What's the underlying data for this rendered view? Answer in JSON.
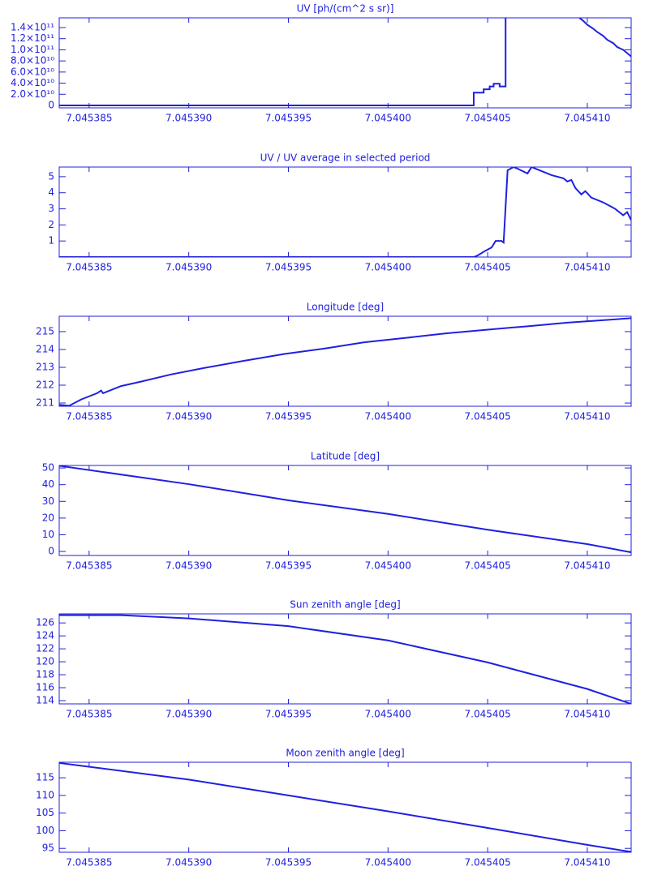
{
  "chart_data": [
    {
      "type": "line",
      "title": "UV [ph/(cm^2 s sr)]",
      "color": "#2020e0",
      "x": [
        7.0453835,
        7.0454043,
        7.0454043,
        7.0454048,
        7.0454048,
        7.0454051,
        7.0454051,
        7.0454053,
        7.0454053,
        7.0454056,
        7.0454056,
        7.0454059,
        7.0454059,
        7.0454077,
        7.0454096,
        7.0454098,
        7.04541,
        7.0454103,
        7.0454105,
        7.0454108,
        7.045411,
        7.0454113,
        7.0454115,
        7.0454118,
        7.045412,
        7.0454122
      ],
      "values": [
        0,
        0,
        23000000000,
        23000000000,
        29000000000,
        29000000000,
        34000000000,
        34000000000,
        39000000000,
        39000000000,
        34000000000,
        34000000000,
        157500000000,
        null,
        157500000000,
        152000000000,
        145000000000,
        138000000000,
        132000000000,
        125000000000,
        118000000000,
        112000000000,
        105000000000,
        100000000000,
        94000000000,
        88000000000
      ],
      "xlim": [
        7.0453835,
        7.0454122
      ],
      "ylim": [
        -4400000000,
        157500000000
      ],
      "xticks": [
        7.045385,
        {
          "value": 7.04539,
          "label": "7.045390"
        },
        7.045395,
        {
          "value": 7.0454,
          "label": "7.045400"
        },
        7.045405,
        {
          "value": 7.04541,
          "label": "7.045410"
        }
      ],
      "yticks": [
        0,
        {
          "value": 20000000000,
          "label": "2.0×10¹⁰"
        },
        {
          "value": 40000000000,
          "label": "4.0×10¹⁰"
        },
        {
          "value": 60000000000,
          "label": "6.0×10¹⁰"
        },
        {
          "value": 80000000000,
          "label": "8.0×10¹⁰"
        },
        {
          "value": 100000000000,
          "label": "1.0×10¹¹"
        },
        {
          "value": 120000000000,
          "label": "1.2×10¹¹"
        },
        {
          "value": 140000000000,
          "label": "1.4×10¹¹"
        }
      ]
    },
    {
      "type": "line",
      "title": "UV / UV average in selected period",
      "color": "#2020e0",
      "x": [
        7.0453835,
        7.0454043,
        7.0454045,
        7.0454049,
        7.0454052,
        7.0454054,
        7.0454057,
        7.0454058,
        7.045406,
        7.0454063,
        7.0454065,
        7.045407,
        7.0454072,
        7.0454076,
        7.0454082,
        7.0454088,
        7.045409,
        7.0454092,
        7.0454094,
        7.0454097,
        7.0454099,
        7.0454102,
        7.0454108,
        7.0454114,
        7.0454118,
        7.045412,
        7.0454122
      ],
      "values": [
        0,
        0,
        0.1,
        0.4,
        0.6,
        1.0,
        1.0,
        0.9,
        5.4,
        5.6,
        5.5,
        5.2,
        5.6,
        5.4,
        5.1,
        4.9,
        4.7,
        4.8,
        4.3,
        3.9,
        4.1,
        3.7,
        3.4,
        3.0,
        2.6,
        2.8,
        2.3
      ],
      "xlim": [
        7.0453835,
        7.0454122
      ],
      "ylim": [
        0,
        5.6
      ],
      "xticks": [
        7.045385,
        {
          "value": 7.04539,
          "label": "7.045390"
        },
        7.045395,
        {
          "value": 7.0454,
          "label": "7.045400"
        },
        7.045405,
        {
          "value": 7.04541,
          "label": "7.045410"
        }
      ],
      "yticks": [
        1,
        2,
        3,
        4,
        5
      ]
    },
    {
      "type": "line",
      "title": "Longitude [deg]",
      "color": "#2020e0",
      "x": [
        7.0453835,
        7.045384,
        7.0453846,
        7.0453854,
        7.0453856,
        7.0453857,
        7.0453866,
        7.0453876,
        7.0453891,
        7.0453907,
        7.0453927,
        7.0453948,
        7.0453968,
        7.0453988,
        7.0454009,
        7.0454029,
        7.0454049,
        7.045407,
        7.045409,
        7.0454122
      ],
      "values": [
        210.9,
        210.85,
        211.2,
        211.55,
        211.7,
        211.55,
        211.95,
        212.2,
        212.6,
        212.95,
        213.35,
        213.75,
        214.05,
        214.4,
        214.65,
        214.9,
        215.1,
        215.3,
        215.5,
        215.75
      ],
      "xlim": [
        7.0453835,
        7.0454122
      ],
      "ylim": [
        210.82,
        215.86
      ],
      "xticks": [
        7.045385,
        {
          "value": 7.04539,
          "label": "7.045390"
        },
        7.045395,
        {
          "value": 7.0454,
          "label": "7.045400"
        },
        7.045405,
        {
          "value": 7.04541,
          "label": "7.045410"
        }
      ],
      "yticks": [
        211,
        212,
        213,
        214,
        215
      ]
    },
    {
      "type": "line",
      "title": "Latitude [deg]",
      "color": "#2020e0",
      "x": [
        7.0453835,
        7.04539,
        7.045395,
        7.0454,
        7.045405,
        7.04541,
        7.0454122
      ],
      "values": [
        51.3,
        40.3,
        30.6,
        22.5,
        13,
        4.4,
        -0.5
      ],
      "xlim": [
        7.0453835,
        7.0454122
      ],
      "ylim": [
        -2.4,
        51.5
      ],
      "xticks": [
        7.045385,
        {
          "value": 7.04539,
          "label": "7.045390"
        },
        7.045395,
        {
          "value": 7.0454,
          "label": "7.045400"
        },
        7.045405,
        {
          "value": 7.04541,
          "label": "7.045410"
        }
      ],
      "yticks": [
        0,
        10,
        20,
        30,
        40,
        50
      ]
    },
    {
      "type": "line",
      "title": "Sun zenith angle [deg]",
      "color": "#2020e0",
      "x": [
        7.0453835,
        7.0453866,
        7.04539,
        7.045395,
        7.0454,
        7.045405,
        7.04541,
        7.0454122
      ],
      "values": [
        127.2,
        127.2,
        126.7,
        125.5,
        123.3,
        119.9,
        115.8,
        113.5
      ],
      "xlim": [
        7.0453835,
        7.0454122
      ],
      "ylim": [
        113.5,
        127.4
      ],
      "xticks": [
        7.045385,
        {
          "value": 7.04539,
          "label": "7.045390"
        },
        7.045395,
        {
          "value": 7.0454,
          "label": "7.045400"
        },
        7.045405,
        {
          "value": 7.04541,
          "label": "7.045410"
        }
      ],
      "yticks": [
        114,
        116,
        118,
        120,
        122,
        124,
        126
      ]
    },
    {
      "type": "line",
      "title": "Moon zenith angle [deg]",
      "color": "#2020e0",
      "x": [
        7.0453835,
        7.04539,
        7.045395,
        7.0454,
        7.045405,
        7.04541,
        7.0454122
      ],
      "values": [
        119.2,
        114.5,
        110,
        105.5,
        100.8,
        96,
        94
      ],
      "xlim": [
        7.0453835,
        7.0454122
      ],
      "ylim": [
        93.9,
        119.4
      ],
      "xticks": [
        7.045385,
        {
          "value": 7.04539,
          "label": "7.045390"
        },
        7.045395,
        {
          "value": 7.0454,
          "label": "7.045400"
        },
        7.045405,
        {
          "value": 7.04541,
          "label": "7.045410"
        }
      ],
      "yticks": [
        95,
        100,
        105,
        110,
        115
      ]
    }
  ]
}
